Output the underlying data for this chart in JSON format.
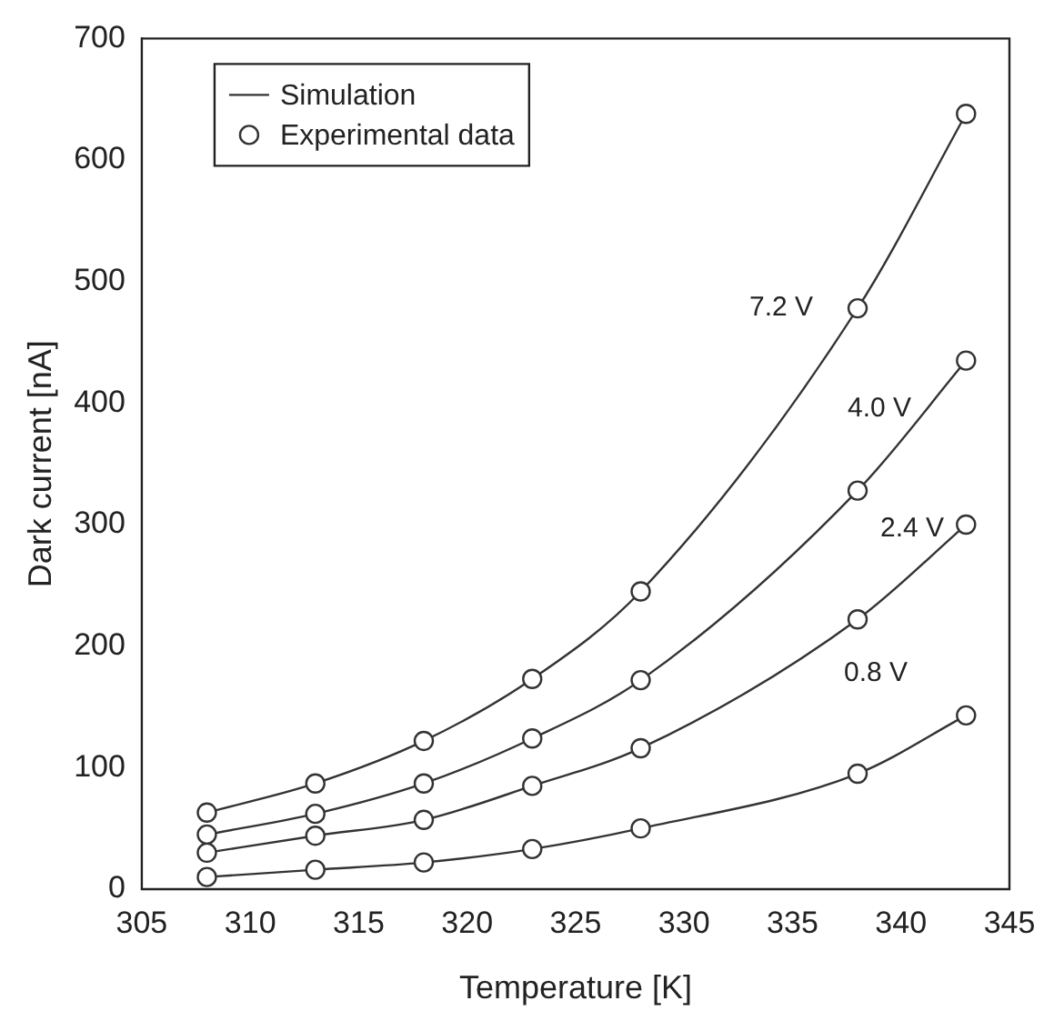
{
  "chart_data": {
    "type": "line",
    "xlabel": "Temperature [K]",
    "ylabel": "Dark current [nA]",
    "x": [
      308,
      313,
      318,
      323,
      328,
      338,
      343
    ],
    "xlim": [
      305,
      345
    ],
    "xticks": [
      305,
      310,
      315,
      320,
      325,
      330,
      335,
      340,
      345
    ],
    "ylim": [
      0,
      700
    ],
    "yticks": [
      0,
      100,
      200,
      300,
      400,
      500,
      600,
      700
    ],
    "grid": false,
    "legend": "top left",
    "series": [
      {
        "name": "Simulation",
        "marker": "none",
        "color": "#333333",
        "values": [
          63,
          87,
          122,
          173,
          245,
          478,
          638
        ]
      },
      {
        "marker": "none",
        "color": "#333333",
        "values": [
          45,
          62,
          87,
          124,
          172,
          328,
          435
        ]
      },
      {
        "marker": "none",
        "color": "#333333",
        "values": [
          30,
          44,
          57,
          85,
          116,
          222,
          300
        ]
      },
      {
        "marker": "none",
        "color": "#333333",
        "values": [
          10,
          16,
          22,
          33,
          50,
          95,
          143
        ]
      },
      {
        "name": "Experimental data",
        "type": "scatter",
        "marker": "circle",
        "color": "#333333",
        "values": [
          63,
          87,
          122,
          173,
          245,
          478,
          638
        ]
      },
      {
        "type": "scatter",
        "marker": "circle",
        "color": "#333333",
        "values": [
          45,
          62,
          87,
          124,
          172,
          328,
          435
        ]
      },
      {
        "type": "scatter",
        "marker": "circle",
        "color": "#333333",
        "values": [
          30,
          44,
          57,
          85,
          116,
          222,
          300
        ]
      },
      {
        "type": "scatter",
        "marker": "circle",
        "color": "#333333",
        "values": [
          10,
          16,
          22,
          33,
          50,
          95,
          143
        ]
      }
    ],
    "annotations": [
      "7.2 V",
      "4.0 V",
      "2.4 V",
      "0.8 V"
    ]
  }
}
